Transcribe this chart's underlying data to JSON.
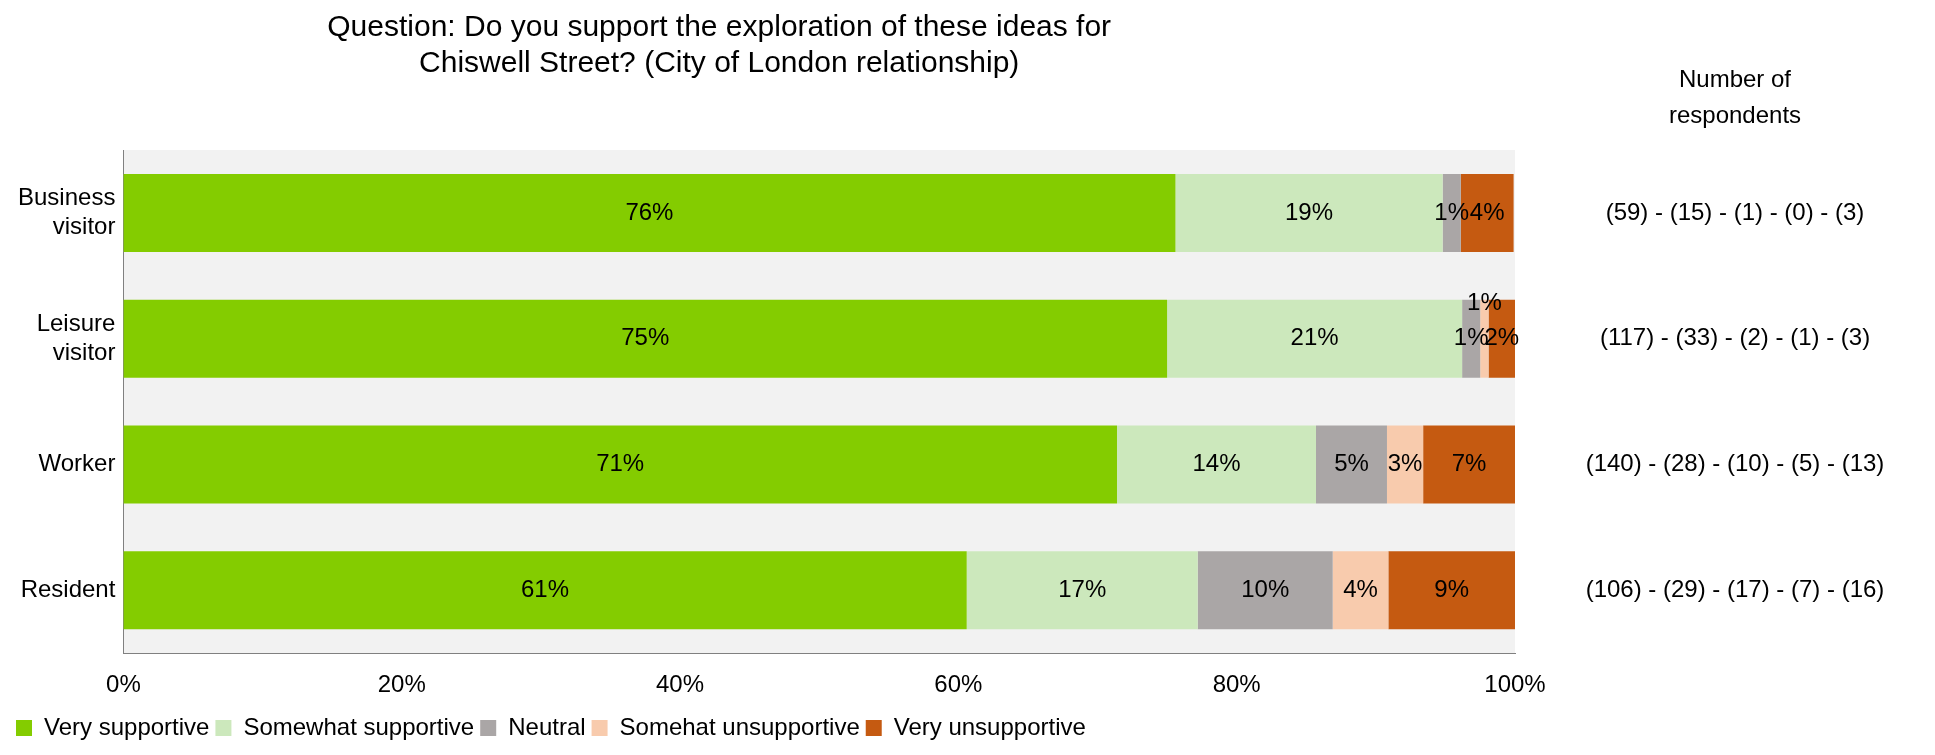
{
  "chart_data": {
    "type": "bar",
    "orientation": "horizontal",
    "stacked": true,
    "title": "Question: Do you support the exploration of these ideas for Chiswell Street? (City of London relationship)",
    "categories": [
      "Business visitor",
      "Leisure visitor",
      "Worker",
      "Resident"
    ],
    "series": [
      {
        "name": "Very supportive",
        "color": "#84cc00",
        "values": [
          75.6,
          75.0,
          71.4,
          60.6
        ],
        "value_labels": [
          "76%",
          "75%",
          "71%",
          "61%"
        ]
      },
      {
        "name": "Somewhat supportive",
        "color": "#cce8bc",
        "values": [
          19.2,
          21.2,
          14.3,
          16.6
        ],
        "value_labels": [
          "19%",
          "21%",
          "14%",
          "17%"
        ]
      },
      {
        "name": "Neutral",
        "color": "#aaa6a6",
        "values": [
          1.3,
          1.3,
          5.1,
          9.7
        ],
        "value_labels": [
          "1%",
          "1%",
          "5%",
          "10%"
        ]
      },
      {
        "name": "Somehat unsupportive",
        "color": "#f8cbad",
        "values": [
          0,
          0.6,
          2.6,
          4.0
        ],
        "value_labels": [
          null,
          "1%",
          "3%",
          "4%"
        ]
      },
      {
        "name": "Very unsupportive",
        "color": "#c55a11",
        "values": [
          3.8,
          1.9,
          6.6,
          9.1
        ],
        "value_labels": [
          "4%",
          "2%",
          "7%",
          "9%"
        ]
      }
    ],
    "xlim": [
      0,
      100
    ],
    "xticks": [
      {
        "value": 0,
        "label": "0%"
      },
      {
        "value": 20,
        "label": "20%"
      },
      {
        "value": 40,
        "label": "40%"
      },
      {
        "value": 60,
        "label": "60%"
      },
      {
        "value": 80,
        "label": "80%"
      },
      {
        "value": 100,
        "label": "100%"
      }
    ],
    "grid": false,
    "legend": "bottom",
    "annotations": [
      "Number of respondents",
      "(59) - (15) - (1) - (0) - (3)",
      "(117) - (33) - (2) - (1) - (3)",
      "(140) - (28) - (10) - (5) - (13)",
      "(106) - (29) - (17) - (7) - (16)"
    ]
  }
}
